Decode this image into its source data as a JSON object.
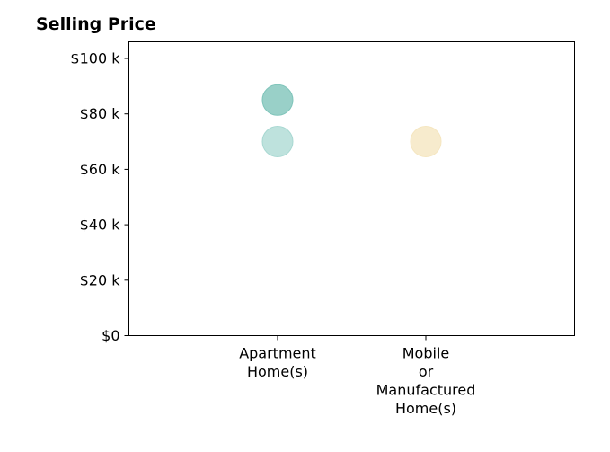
{
  "chart_data": {
    "type": "scatter",
    "title": "Selling Price",
    "xlabel": "",
    "ylabel": "",
    "categories": [
      "Apartment Home(s)",
      "Mobile or Manufactured Home(s)"
    ],
    "category_tick_lines": [
      [
        "Apartment",
        "Home(s)"
      ],
      [
        "Mobile",
        "or",
        "Manufactured",
        "Home(s)"
      ]
    ],
    "ylim": [
      0,
      106000
    ],
    "y_ticks": [
      0,
      20000,
      40000,
      60000,
      80000,
      100000
    ],
    "y_tick_labels": [
      "$0",
      "$20 k",
      "$40 k",
      "$60 k",
      "$80 k",
      "$100 k"
    ],
    "grid": false,
    "points": [
      {
        "category": "Apartment Home(s)",
        "y": 85000,
        "color": "#7fc4ba",
        "opacity": 0.8
      },
      {
        "category": "Apartment Home(s)",
        "y": 70000,
        "color": "#a8d8d2",
        "opacity": 0.75
      },
      {
        "category": "Mobile or Manufactured Home(s)",
        "y": 70000,
        "color": "#f5e6c0",
        "opacity": 0.8
      }
    ]
  }
}
